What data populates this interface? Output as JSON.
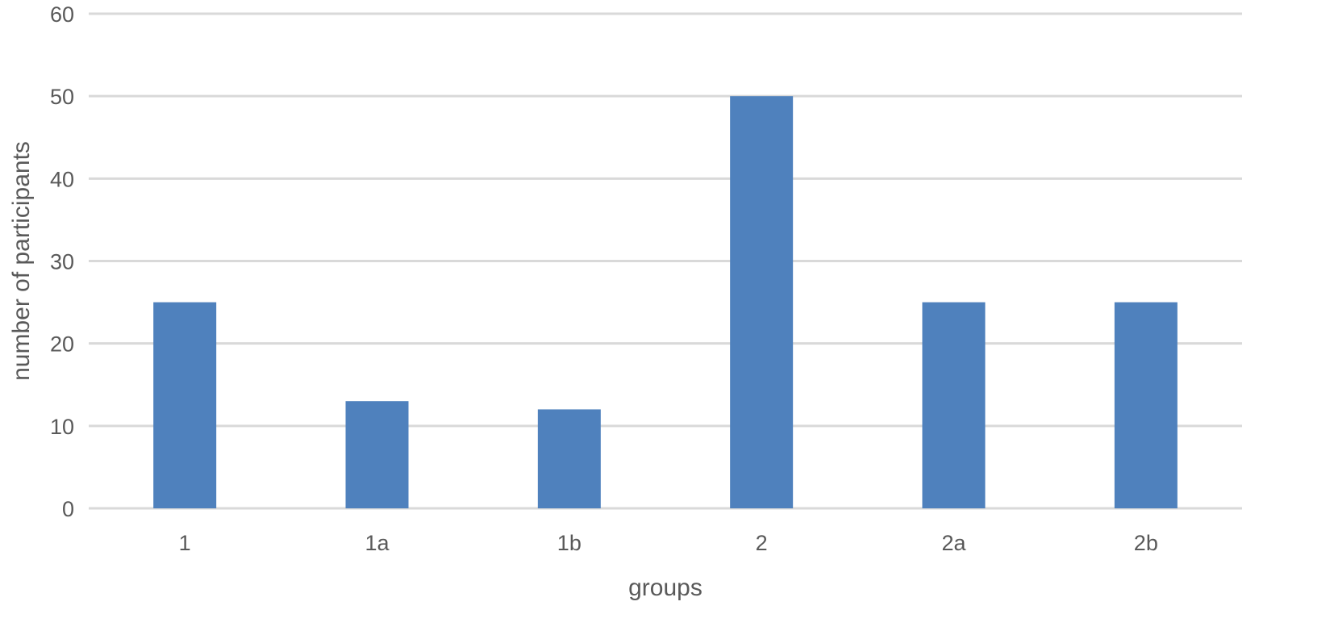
{
  "chart_data": {
    "type": "bar",
    "categories": [
      "1",
      "1a",
      "1b",
      "2",
      "2a",
      "2b"
    ],
    "values": [
      25,
      13,
      12,
      50,
      25,
      25
    ],
    "title": "",
    "xlabel": "groups",
    "ylabel": "number of participants",
    "ylim": [
      0,
      60
    ],
    "yticks": [
      0,
      10,
      20,
      30,
      40,
      50,
      60
    ],
    "grid": true,
    "legend": "none",
    "colors": {
      "bar": "#4f81bd",
      "grid": "#d9d9d9",
      "text": "#595959"
    }
  }
}
